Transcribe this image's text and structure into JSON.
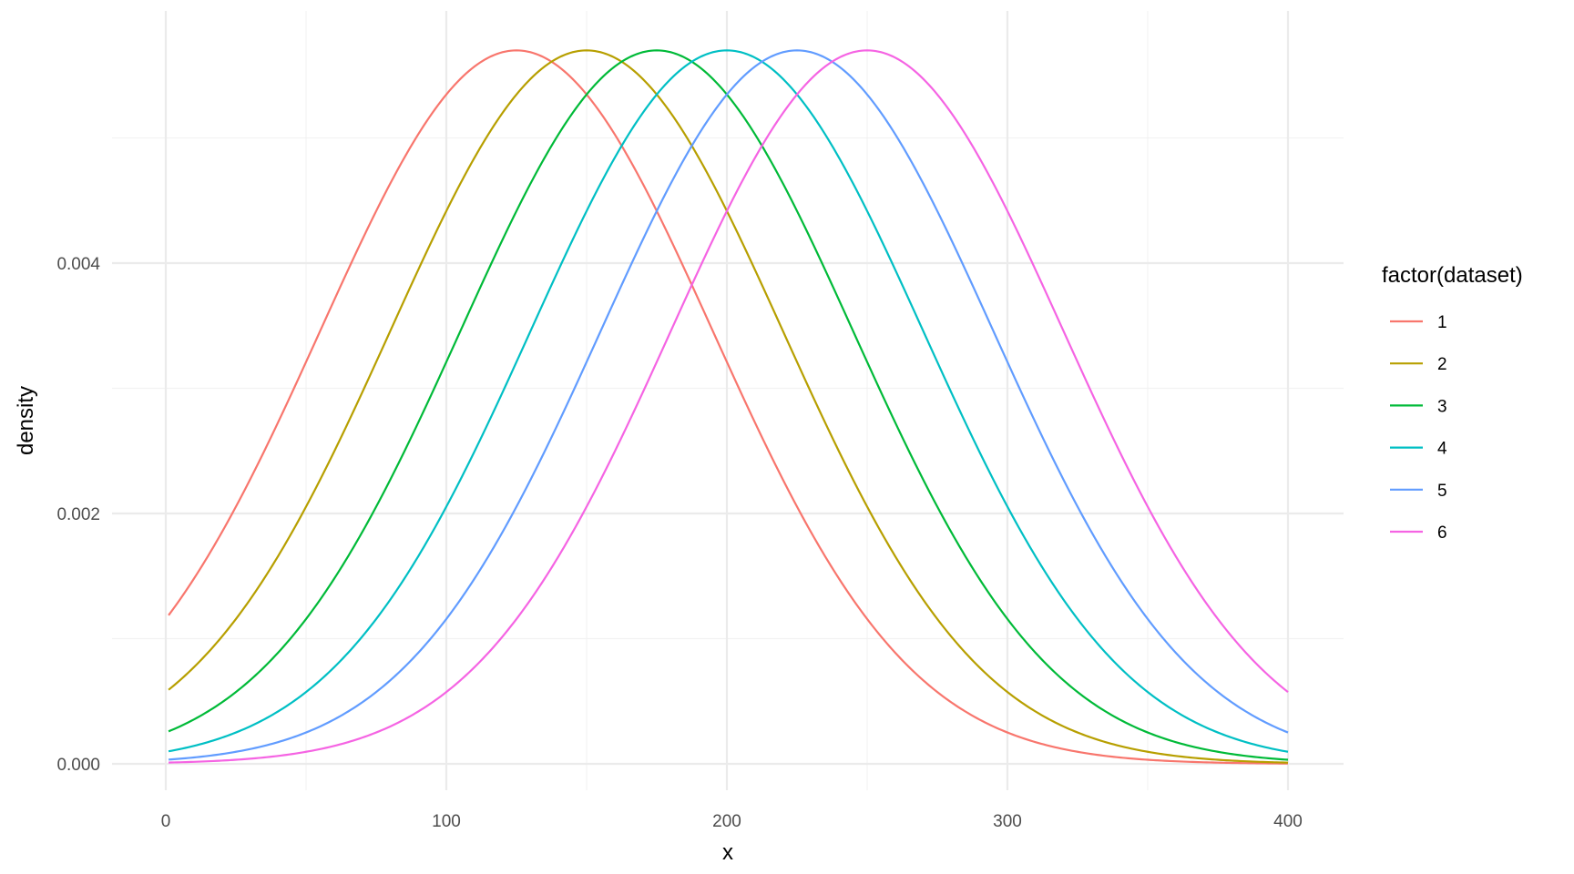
{
  "chart_data": {
    "type": "line",
    "title": "",
    "xlabel": "x",
    "ylabel": "density",
    "xlim": [
      1,
      400
    ],
    "ylim": [
      0,
      0.00565
    ],
    "x_ticks": [
      0,
      100,
      200,
      300,
      400
    ],
    "x_tick_labels": [
      "0",
      "100",
      "200",
      "300",
      "400"
    ],
    "x_minor_ticks": [
      50,
      150,
      250,
      350
    ],
    "y_ticks": [
      0,
      0.002,
      0.004
    ],
    "y_tick_labels": [
      "0.000",
      "0.002",
      "0.004"
    ],
    "y_minor_ticks": [
      0.001,
      0.003,
      0.005
    ],
    "grid": true,
    "legend": {
      "title": "factor(dataset)",
      "position": "right"
    },
    "distribution": "normal",
    "x_step": 1,
    "series": [
      {
        "name": "1",
        "color": "#F8766D",
        "mean": 125,
        "sd": 70
      },
      {
        "name": "2",
        "color": "#B79F00",
        "mean": 150,
        "sd": 70
      },
      {
        "name": "3",
        "color": "#00BA38",
        "mean": 175,
        "sd": 70
      },
      {
        "name": "4",
        "color": "#00BFC4",
        "mean": 200,
        "sd": 70
      },
      {
        "name": "5",
        "color": "#619CFF",
        "mean": 225,
        "sd": 70
      },
      {
        "name": "6",
        "color": "#F564E3",
        "mean": 250,
        "sd": 70
      }
    ]
  }
}
